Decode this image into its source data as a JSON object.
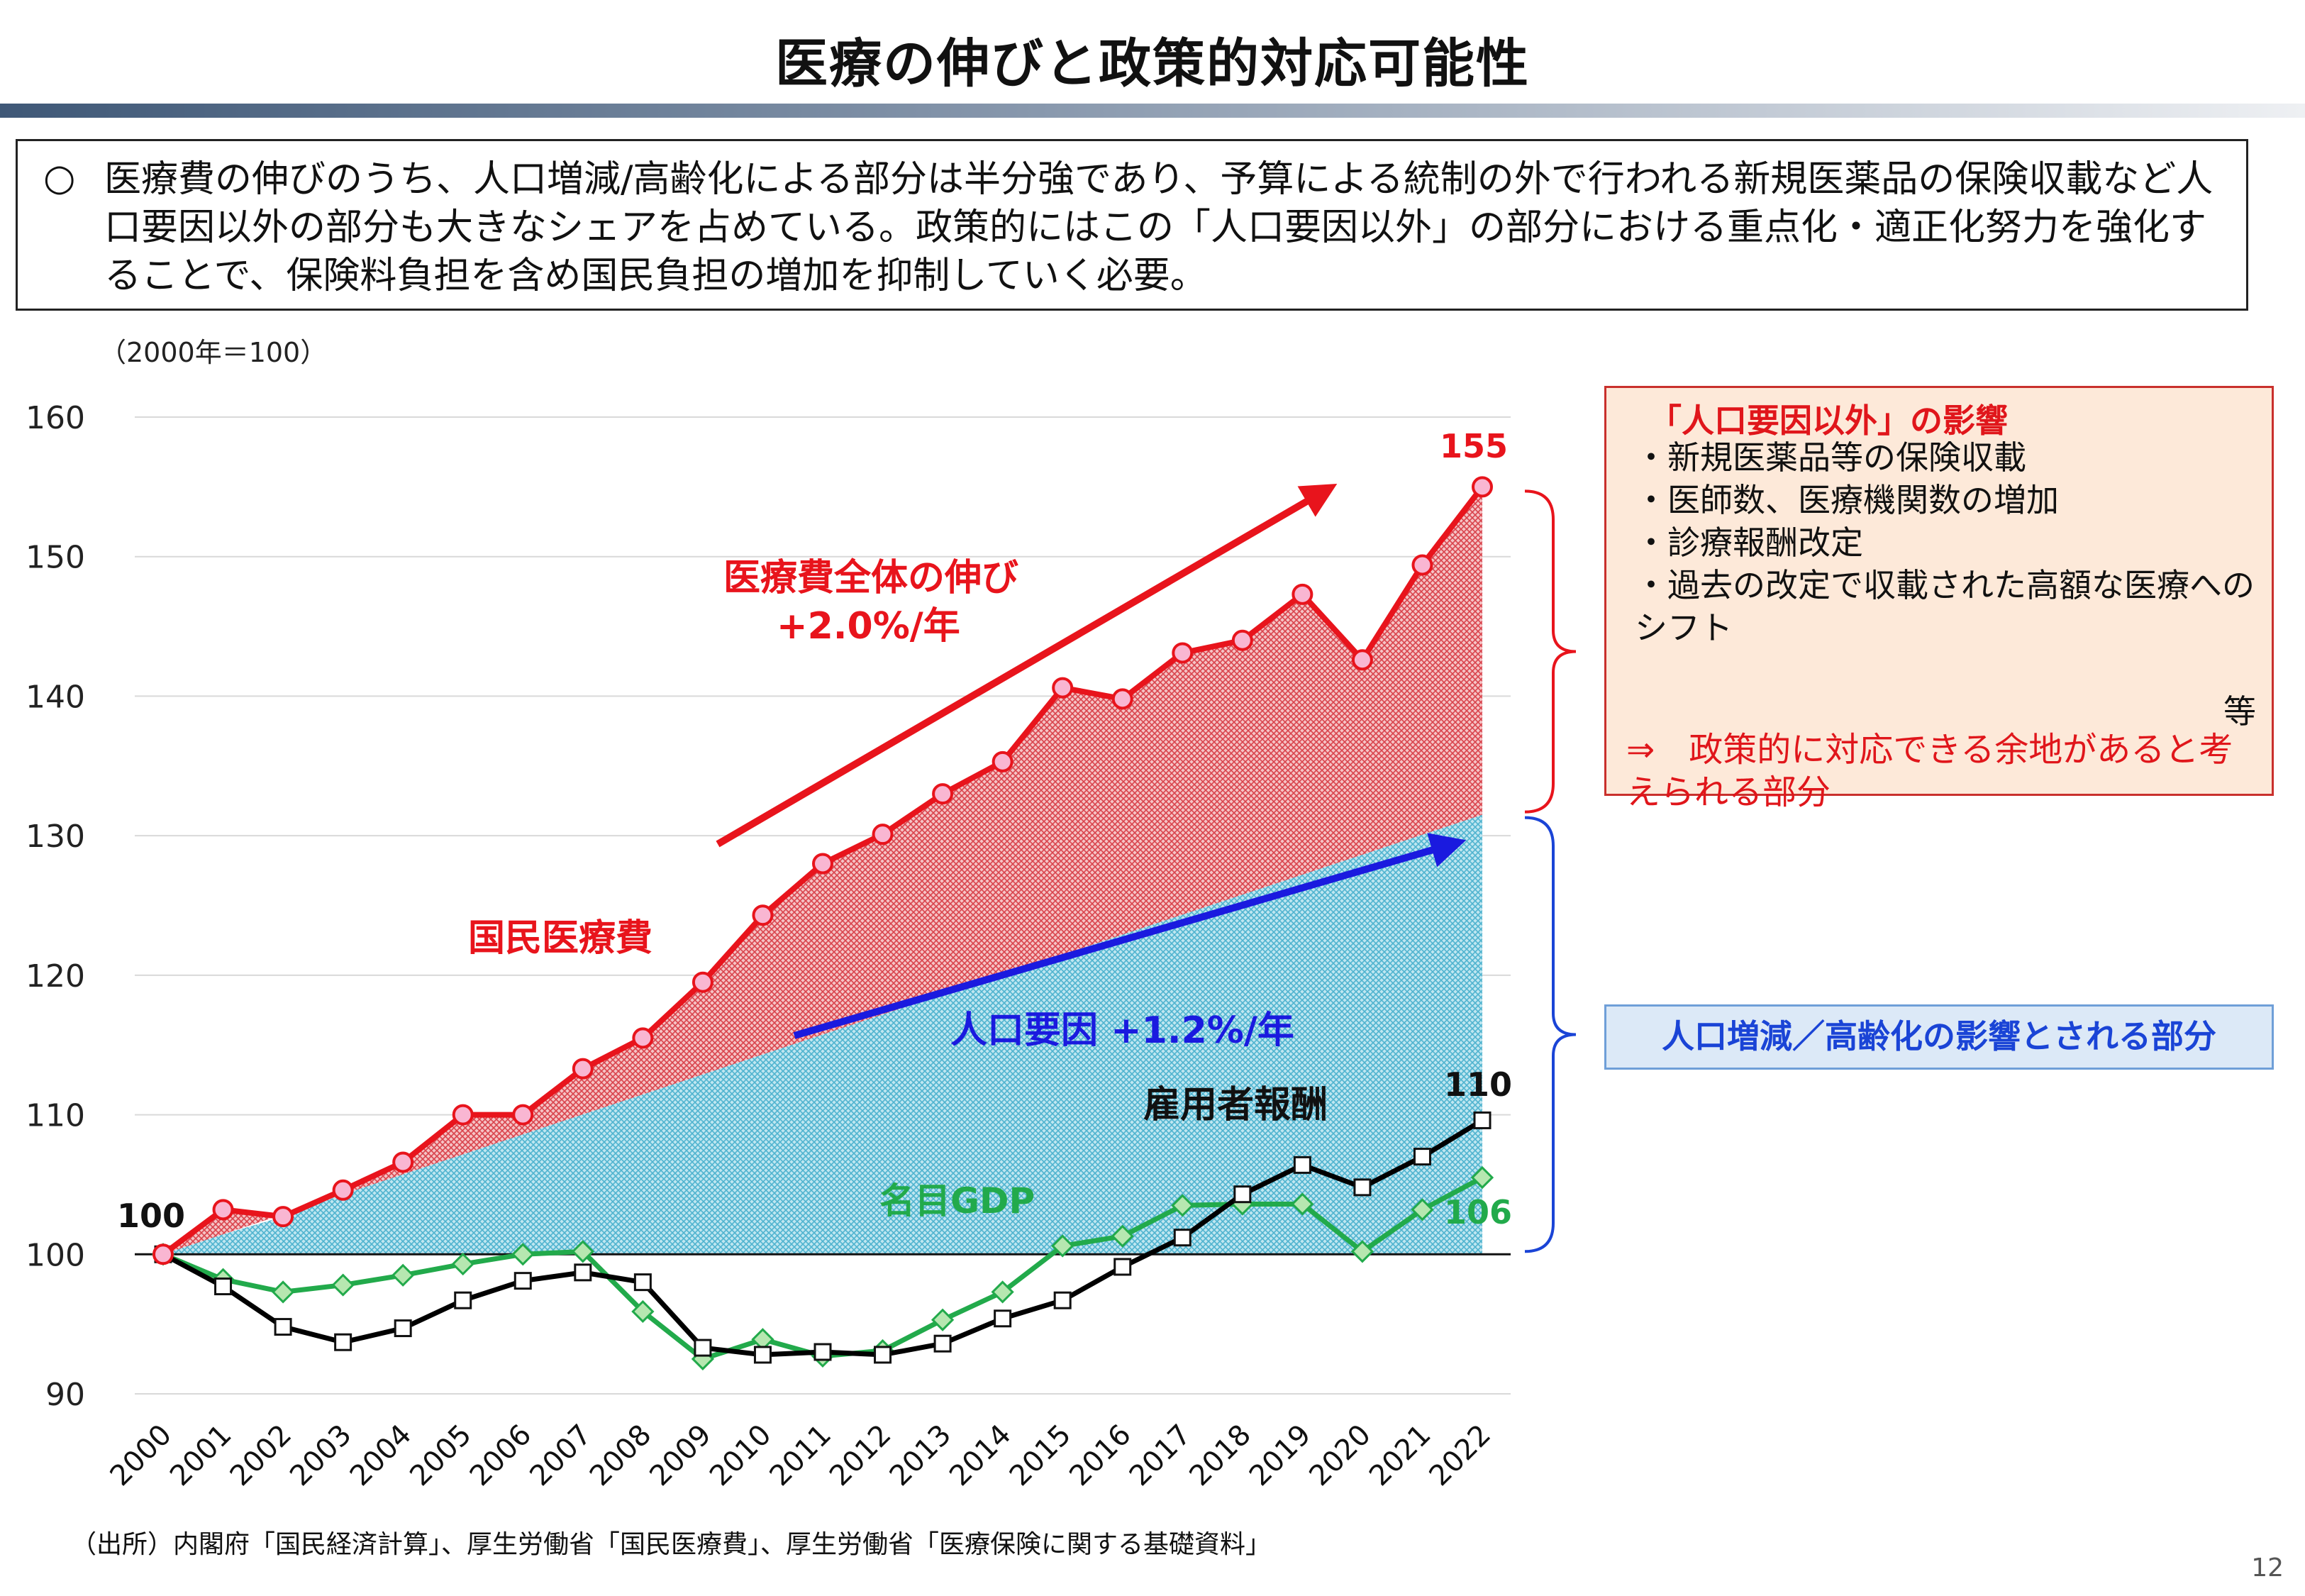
{
  "page": {
    "title": "医療の伸びと政策的対応可能性",
    "summary_bullet": "○",
    "summary_text": "医療費の伸びのうち、人口増減/高齢化による部分は半分強であり、予算による統制の外で行われる新規医薬品の保険収載など人口要因以外の部分も大きなシェアを占めている。政策的にはこの「人口要因以外」の部分における重点化・適正化努力を強化することで、保険料負担を含め国民負担の増加を抑制していく必要。",
    "source": "（出所）内閣府「国民経済計算」、厚生労働省「国民医療費」、厚生労働省「医療保険に関する基礎資料」",
    "page_number": "12"
  },
  "side_box_red": {
    "heading": "「人口要因以外」の影響",
    "items": [
      "新規医薬品等の保険収載",
      "医師数、医療機関数の増加",
      "診療報酬改定",
      "過去の改定で収載された高額な医療へのシフト"
    ],
    "etc": "等",
    "conclusion": "⇒　政策的に対応できる余地があると考えられる部分"
  },
  "side_box_blue": {
    "label": "人口増減／高齢化の影響とされる部分"
  },
  "chart_data": {
    "type": "line",
    "unit_label": "（2000年＝100）",
    "x": [
      "2000",
      "2001",
      "2002",
      "2003",
      "2004",
      "2005",
      "2006",
      "2007",
      "2008",
      "2009",
      "2010",
      "2011",
      "2012",
      "2013",
      "2014",
      "2015",
      "2016",
      "2017",
      "2018",
      "2019",
      "2020",
      "2021",
      "2022"
    ],
    "ylim": [
      90,
      160
    ],
    "yticks": [
      90,
      100,
      110,
      120,
      130,
      140,
      150,
      160
    ],
    "grid": true,
    "series": [
      {
        "name": "国民医療費",
        "color": "#e8141c",
        "marker": "circle",
        "values": [
          100,
          103.2,
          102.7,
          104.6,
          106.6,
          110.0,
          110.0,
          113.3,
          115.5,
          119.5,
          124.3,
          128.0,
          130.1,
          133.0,
          135.3,
          140.6,
          139.8,
          143.1,
          144.0,
          147.3,
          142.6,
          149.4,
          155
        ]
      },
      {
        "name": "雇用者報酬",
        "color": "#000000",
        "marker": "square",
        "values": [
          100,
          97.7,
          94.8,
          93.7,
          94.7,
          96.7,
          98.1,
          98.7,
          98.0,
          93.3,
          92.8,
          93.0,
          92.8,
          93.6,
          95.4,
          96.7,
          99.1,
          101.2,
          104.3,
          106.4,
          104.8,
          107.0,
          109.6
        ]
      },
      {
        "name": "名目GDP",
        "color": "#22aa4b",
        "marker": "diamond",
        "values": [
          100,
          98.2,
          97.3,
          97.8,
          98.5,
          99.3,
          100.0,
          100.2,
          95.9,
          92.5,
          93.9,
          92.7,
          93.1,
          95.3,
          97.3,
          100.6,
          101.3,
          103.5,
          103.6,
          103.6,
          100.2,
          103.2,
          105.5
        ]
      }
    ],
    "population_factor": {
      "start_value": 100,
      "end_value": 131.5
    },
    "annotations": {
      "start_label": "100",
      "end_label_medical": "155",
      "end_label_wages": "110",
      "end_label_gdp": "106",
      "overall_growth_title": "医療費全体の伸び",
      "overall_growth_rate": "+2.0%/年",
      "population_factor_label": "人口要因 +1.2%/年",
      "series_label_medical": "国民医療費",
      "series_label_wages": "雇用者報酬",
      "series_label_gdp": "名目GDP"
    },
    "colors": {
      "red": "#e8141c",
      "red_area": "#e5828a",
      "blue_area": "#7fcbe0",
      "blue_arrow": "#1a1adf",
      "green": "#22aa4b",
      "bracket_red": "#e8141c",
      "bracket_blue": "#1a44d6"
    }
  }
}
